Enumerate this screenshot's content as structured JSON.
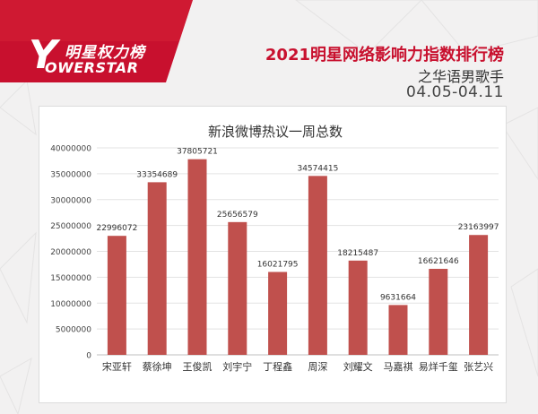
{
  "header": {
    "logo_cn": "明星权力榜",
    "logo_y": "Y",
    "logo_en": "OWERSTAR",
    "title": "2021明星网络影响力指数排行榜",
    "subtitle": "之华语男歌手",
    "period": "04.05-04.11"
  },
  "colors": {
    "accent": "#c8102e",
    "bar": "#c0504d"
  },
  "chart_data": {
    "type": "bar",
    "title": "新浪微博热议一周总数",
    "categories": [
      "宋亚轩",
      "蔡徐坤",
      "王俊凯",
      "刘宇宁",
      "丁程鑫",
      "周深",
      "刘耀文",
      "马嘉祺",
      "易烊千玺",
      "张艺兴"
    ],
    "values": [
      22996072,
      33354689,
      37805721,
      25656579,
      16021795,
      34574415,
      18215487,
      9631664,
      16621646,
      23163997
    ],
    "value_labels": [
      "22996072",
      "33354689",
      "37805721",
      "25656579",
      "16021795",
      "34574415",
      "18215487",
      "9631664",
      "16621646",
      "23163997"
    ],
    "yticks": [
      "0",
      "5000000",
      "10000000",
      "15000000",
      "20000000",
      "25000000",
      "30000000",
      "35000000",
      "40000000"
    ],
    "ylim": [
      0,
      40000000
    ],
    "grid": true,
    "legend": "none"
  }
}
